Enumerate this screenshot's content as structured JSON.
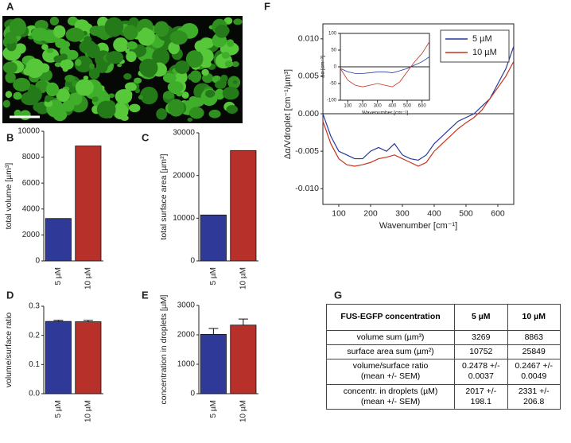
{
  "panel_labels": [
    "A",
    "B",
    "C",
    "D",
    "E",
    "F",
    "G"
  ],
  "chart_data": [
    {
      "type": "bar",
      "ylabel": "total volume [µm³]",
      "categories": [
        "5 µM",
        "10 µM"
      ],
      "values": [
        3269,
        8863
      ],
      "colors": [
        "#2f3a98",
        "#b8302a"
      ],
      "ylim": [
        0,
        10000
      ],
      "yticks": [
        0,
        2000,
        4000,
        6000,
        8000,
        10000
      ]
    },
    {
      "type": "bar",
      "ylabel": "total surface area [µm²]",
      "categories": [
        "5 µM",
        "10 µM"
      ],
      "values": [
        10752,
        25849
      ],
      "colors": [
        "#2f3a98",
        "#b8302a"
      ],
      "ylim": [
        0,
        30000
      ],
      "yticks": [
        0,
        10000,
        20000,
        30000
      ]
    },
    {
      "type": "bar",
      "ylabel": "volume/surface ratio",
      "categories": [
        "5 µM",
        "10 µM"
      ],
      "values": [
        0.2478,
        0.2467
      ],
      "errors": [
        0.0037,
        0.0049
      ],
      "colors": [
        "#2f3a98",
        "#b8302a"
      ],
      "ylim": [
        0,
        0.3
      ],
      "yticks": [
        {
          "value": 0,
          "label": "0.0"
        },
        0.1,
        0.2,
        0.3
      ]
    },
    {
      "type": "bar",
      "ylabel": "concentration in droplets [µM]",
      "categories": [
        "5 µM",
        "10 µM"
      ],
      "values": [
        2017,
        2331
      ],
      "errors": [
        198.1,
        206.8
      ],
      "colors": [
        "#2f3a98",
        "#b8302a"
      ],
      "ylim": [
        0,
        3000
      ],
      "yticks": [
        0,
        1000,
        2000,
        3000
      ]
    },
    {
      "type": "line",
      "xlabel": "Wavenumber [cm⁻¹]",
      "ylabel": "Δα/Vdroplet [cm⁻¹/µm³]",
      "x": [
        50,
        75,
        100,
        125,
        150,
        175,
        200,
        225,
        250,
        275,
        300,
        325,
        350,
        375,
        400,
        425,
        450,
        475,
        500,
        525,
        550,
        575,
        600,
        625,
        650
      ],
      "series": [
        {
          "name": "5 µM",
          "color": "#27389a",
          "values": [
            0.0,
            -0.003,
            -0.005,
            -0.0055,
            -0.006,
            -0.006,
            -0.005,
            -0.0045,
            -0.005,
            -0.004,
            -0.0055,
            -0.006,
            -0.0062,
            -0.0055,
            -0.004,
            -0.003,
            -0.002,
            -0.001,
            -0.0005,
            0.0,
            0.001,
            0.002,
            0.004,
            0.006,
            0.009
          ]
        },
        {
          "name": "10 µM",
          "color": "#c8321f",
          "values": [
            -0.001,
            -0.004,
            -0.006,
            -0.0068,
            -0.007,
            -0.0068,
            -0.0065,
            -0.006,
            -0.0058,
            -0.0055,
            -0.006,
            -0.0065,
            -0.007,
            -0.0065,
            -0.005,
            -0.004,
            -0.003,
            -0.002,
            -0.0012,
            -0.0005,
            0.0005,
            0.002,
            0.0035,
            0.005,
            0.007
          ]
        }
      ],
      "xlim": [
        50,
        650
      ],
      "xticks": [
        100,
        200,
        300,
        400,
        500,
        600
      ],
      "ylim": [
        -0.0121,
        0.012
      ],
      "yticks": [
        {
          "value": -0.01,
          "label": "-0.010"
        },
        {
          "value": -0.005,
          "label": "-0.005"
        },
        {
          "value": 0,
          "label": "0.000"
        },
        {
          "value": 0.005,
          "label": "0.005"
        },
        {
          "value": 0.01,
          "label": "0.010"
        }
      ],
      "legend": "upper right"
    },
    {
      "type": "line",
      "xlabel": "Wavenumber [cm⁻¹]",
      "ylabel": "Δα [cm⁻³]",
      "x": [
        50,
        100,
        150,
        200,
        250,
        300,
        350,
        400,
        450,
        500,
        550,
        600,
        650
      ],
      "series": [
        {
          "color": "#27389a",
          "values": [
            -5,
            -15,
            -20,
            -20,
            -18,
            -15,
            -15,
            -18,
            -12,
            -5,
            5,
            15,
            30
          ]
        },
        {
          "color": "#c8321f",
          "values": [
            -5,
            -40,
            -55,
            -60,
            -55,
            -50,
            -55,
            -60,
            -45,
            -15,
            15,
            40,
            75
          ]
        }
      ],
      "xlim": [
        50,
        650
      ],
      "xticks": [
        100,
        200,
        300,
        400,
        500,
        600
      ],
      "ylim": [
        -100,
        100
      ],
      "yticks": [
        -100,
        -50,
        0,
        50,
        100
      ]
    }
  ],
  "table": {
    "header": [
      "FUS-EGFP concentration",
      "5 µM",
      "10 µM"
    ],
    "rows": [
      [
        "volume sum (µm³)",
        "3269",
        "8863"
      ],
      [
        "surface area sum (µm²)",
        "10752",
        "25849"
      ],
      [
        "volume/surface ratio\n(mean +/- SEM)",
        "0.2478 +/-\n0.0037",
        "0.2467 +/-\n0.0049"
      ],
      [
        "concentr. in droplets (µM)\n(mean +/- SEM)",
        "2017 +/-\n198.1",
        "2331 +/-\n206.8"
      ]
    ]
  }
}
